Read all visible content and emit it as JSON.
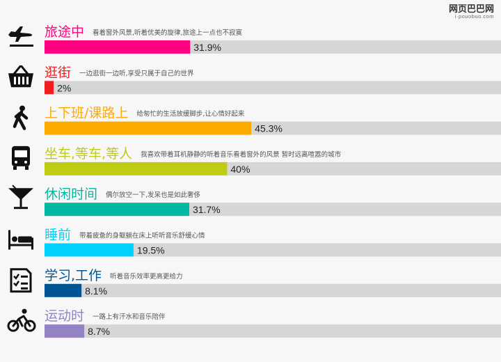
{
  "watermark": {
    "title": "网页巴巴网",
    "subtitle": "i·pouobuo.com"
  },
  "chart_data": {
    "type": "bar",
    "orientation": "horizontal",
    "value_unit": "%",
    "xlim": [
      0,
      100
    ],
    "grid": false,
    "legend": "none",
    "categories": [
      {
        "name": "旅途中",
        "desc": "看着窗外风景,听着优美的旋律,旅途上一点也不寂寞",
        "value": 31.9,
        "label": "31.9%",
        "color": "#ff0080",
        "icon": "airplane-icon"
      },
      {
        "name": "逛街",
        "desc": "一边逛街一边听,享受只属于自己的世界",
        "value": 2,
        "label": "2%",
        "color": "#f01e23",
        "icon": "shopping-basket-icon"
      },
      {
        "name": "上下班/课路上",
        "desc": "给匆忙的生活放缓脚步,让心情好起来",
        "value": 45.3,
        "label": "45.3%",
        "color": "#ffaa00",
        "icon": "walking-person-icon"
      },
      {
        "name": "坐车,等车,等人",
        "desc": "我喜欢带着耳机静静的听着音乐看着窗外的风景 暂时远离喧嚣的城市",
        "value": 40,
        "label": "40%",
        "color": "#c0cc14",
        "icon": "bus-icon"
      },
      {
        "name": "休闲时间",
        "desc": "偶尔放空一下,发呆也是如此奢侈",
        "value": 31.7,
        "label": "31.7%",
        "color": "#00b7a0",
        "icon": "cocktail-glass-icon"
      },
      {
        "name": "睡前",
        "desc": "带着疲惫的身躯躺在床上听听音乐舒缓心情",
        "value": 19.5,
        "label": "19.5%",
        "color": "#00d2ff",
        "icon": "bed-icon"
      },
      {
        "name": "学习,工作",
        "desc": "听着音乐效率更高更给力",
        "value": 8.1,
        "label": "8.1%",
        "color": "#005595",
        "icon": "checklist-icon"
      },
      {
        "name": "运动时",
        "desc": "一路上有汗水和音乐陪伴",
        "value": 8.7,
        "label": "8.7%",
        "color": "#9383c2",
        "icon": "cyclist-icon"
      }
    ]
  }
}
